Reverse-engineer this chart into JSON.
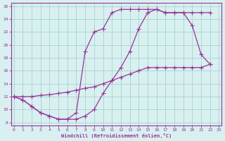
{
  "xlabel": "Windchill (Refroidissement éolien,°C)",
  "bg_color": "#d8f0f0",
  "line_color": "#993399",
  "grid_color": "#a0cccc",
  "xlim": [
    -0.3,
    23.3
  ],
  "ylim": [
    7.5,
    26.5
  ],
  "xticks": [
    0,
    1,
    2,
    3,
    4,
    5,
    6,
    7,
    8,
    9,
    10,
    11,
    12,
    13,
    14,
    15,
    16,
    17,
    18,
    19,
    20,
    21,
    22,
    23
  ],
  "yticks": [
    8,
    10,
    12,
    14,
    16,
    18,
    20,
    22,
    24,
    26
  ],
  "curve1_x": [
    0,
    1,
    2,
    3,
    4,
    5,
    6,
    7,
    8,
    9,
    10,
    11,
    12,
    13,
    14,
    15,
    16,
    17,
    18,
    19,
    20,
    21,
    22
  ],
  "curve1_y": [
    12,
    11.5,
    10.5,
    9.5,
    9.0,
    8.5,
    8.5,
    9.5,
    19.0,
    22.0,
    22.5,
    25.0,
    25.5,
    25.5,
    25.5,
    25.5,
    25.5,
    25.0,
    25.0,
    25.0,
    25.0,
    25.0,
    25.0
  ],
  "curve2_x": [
    0,
    1,
    2,
    3,
    4,
    5,
    6,
    7,
    8,
    9,
    10,
    11,
    12,
    13,
    14,
    15,
    16,
    17,
    18,
    19,
    20,
    21,
    22
  ],
  "curve2_y": [
    12,
    11.5,
    10.5,
    9.5,
    9.0,
    8.5,
    8.5,
    8.5,
    9.0,
    10.0,
    12.5,
    14.5,
    16.5,
    19.0,
    22.5,
    25.0,
    25.5,
    25.0,
    25.0,
    25.0,
    23.0,
    18.5,
    17.0
  ],
  "curve3_x": [
    0,
    1,
    2,
    3,
    4,
    5,
    6,
    7,
    8,
    9,
    10,
    11,
    12,
    13,
    14,
    15,
    16,
    17,
    18,
    19,
    20,
    21,
    22
  ],
  "curve3_y": [
    12,
    12.0,
    12.0,
    12.2,
    12.3,
    12.5,
    12.7,
    13.0,
    13.3,
    13.5,
    14.0,
    14.5,
    15.0,
    15.5,
    16.0,
    16.5,
    16.5,
    16.5,
    16.5,
    16.5,
    16.5,
    16.5,
    17.0
  ]
}
